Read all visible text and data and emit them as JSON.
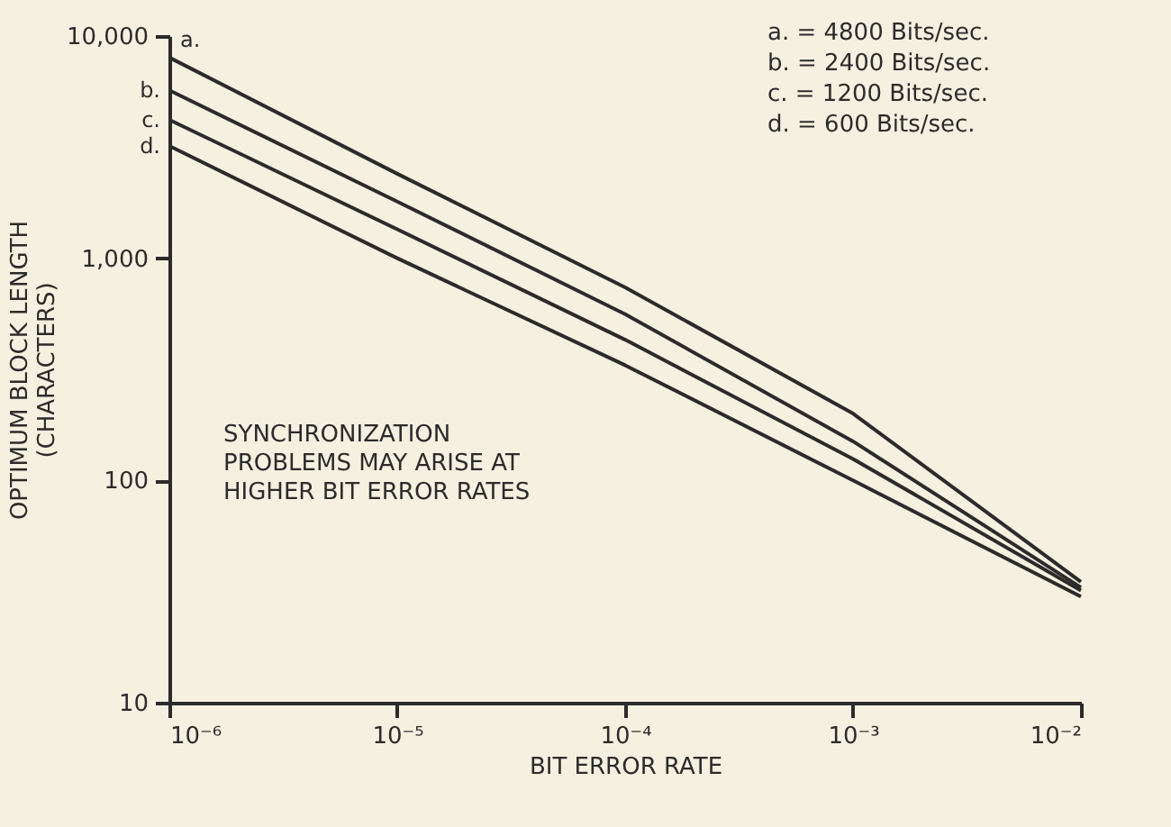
{
  "chart_data": {
    "type": "line",
    "xlabel": "BIT ERROR RATE",
    "ylabel": "OPTIMUM BLOCK LENGTH\n(CHARACTERS)",
    "x": [
      1e-06,
      1e-05,
      0.0001,
      0.001,
      0.01
    ],
    "series": [
      {
        "name": "a.",
        "color": "#2b2b2b",
        "values": [
          8000,
          2400,
          740,
          200,
          35
        ]
      },
      {
        "name": "b.",
        "color": "#2b2b2b",
        "values": [
          5700,
          1800,
          560,
          150,
          33
        ]
      },
      {
        "name": "c.",
        "color": "#2b2b2b",
        "values": [
          4200,
          1350,
          430,
          125,
          32
        ]
      },
      {
        "name": "d.",
        "color": "#2b2b2b",
        "values": [
          3200,
          1000,
          330,
          100,
          30
        ]
      }
    ],
    "log": "xy",
    "xlim": [
      1e-06,
      0.01
    ],
    "ylim": [
      10,
      10000
    ],
    "xticks": [
      {
        "value": 1e-06,
        "label": "10⁻⁶"
      },
      {
        "value": 1e-05,
        "label": "10⁻⁵"
      },
      {
        "value": 0.0001,
        "label": "10⁻⁴"
      },
      {
        "value": 0.001,
        "label": "10⁻³"
      },
      {
        "value": 0.01,
        "label": "10⁻²"
      }
    ],
    "yticks": [
      10,
      100,
      {
        "value": 1000,
        "label": "1,000"
      },
      {
        "value": 10000,
        "label": "10,000"
      }
    ],
    "grid": false,
    "legend": false,
    "marker": "none",
    "line_style": "solid",
    "annotations": [
      "a. = 4800 Bits/sec.",
      "b. = 2400 Bits/sec.",
      "c. = 1200 Bits/sec.",
      "d. =   600 Bits/sec.",
      "SYNCHRONIZATION\nPROBLEMS MAY ARISE AT\nHIGHER BIT ERROR RATES"
    ]
  }
}
